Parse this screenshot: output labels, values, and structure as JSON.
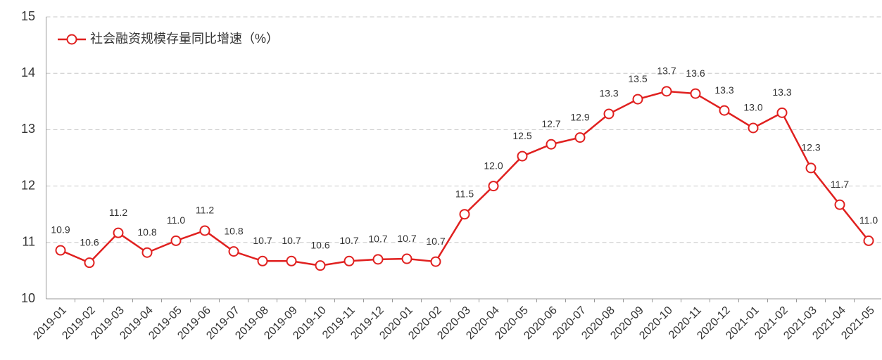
{
  "chart_data": {
    "type": "line",
    "categories": [
      "2019-01",
      "2019-02",
      "2019-03",
      "2019-04",
      "2019-05",
      "2019-06",
      "2019-07",
      "2019-08",
      "2019-09",
      "2019-10",
      "2019-11",
      "2019-12",
      "2020-01",
      "2020-02",
      "2020-03",
      "2020-04",
      "2020-05",
      "2020-06",
      "2020-07",
      "2020-08",
      "2020-09",
      "2020-10",
      "2020-11",
      "2020-12",
      "2021-01",
      "2021-02",
      "2021-03",
      "2021-04",
      "2021-05"
    ],
    "series": [
      {
        "name": "社会融资规模存量同比增速（%）",
        "color": "#e0201f",
        "values": [
          10.86,
          10.64,
          11.17,
          10.82,
          11.03,
          11.21,
          10.84,
          10.67,
          10.67,
          10.59,
          10.67,
          10.7,
          10.71,
          10.66,
          11.5,
          12.0,
          12.53,
          12.74,
          12.86,
          13.28,
          13.54,
          13.68,
          13.64,
          13.34,
          13.03,
          13.3,
          12.32,
          11.67,
          11.03
        ],
        "value_labels": [
          "10.9",
          "10.6",
          "11.2",
          "10.8",
          "11.0",
          "11.2",
          "10.8",
          "10.7",
          "10.7",
          "10.6",
          "10.7",
          "10.7",
          "10.7",
          "10.7",
          "11.5",
          "12.0",
          "12.5",
          "12.7",
          "12.9",
          "13.3",
          "13.5",
          "13.7",
          "13.6",
          "13.3",
          "13.0",
          "13.3",
          "12.3",
          "11.7",
          "11.0"
        ]
      }
    ],
    "ylim": [
      10,
      15
    ],
    "yticks": [
      10,
      11,
      12,
      13,
      14,
      15
    ],
    "grid": true,
    "legend": "upper left"
  }
}
